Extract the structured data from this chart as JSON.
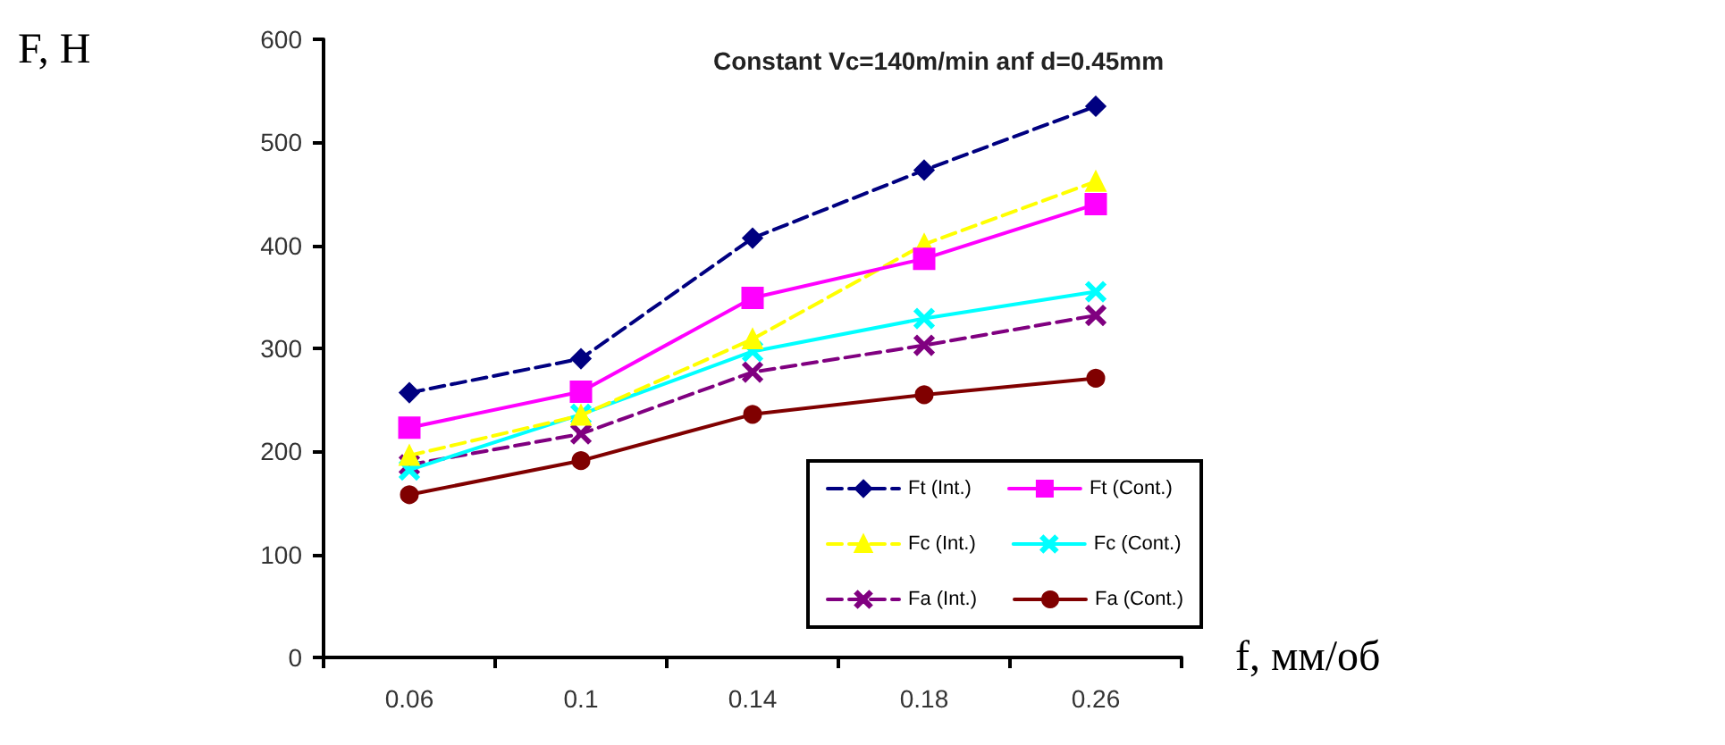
{
  "chart_data": {
    "type": "line",
    "title": "Constant Vc=140m/min anf d=0.45mm",
    "xlabel": "f, мм/об",
    "ylabel": "F, H",
    "categories": [
      "0.06",
      "0.1",
      "0.14",
      "0.18",
      "0.26"
    ],
    "ylim": [
      0,
      600
    ],
    "yticks": [
      0,
      100,
      200,
      300,
      400,
      500,
      600
    ],
    "grid": false,
    "legend": "bottom right",
    "series": [
      {
        "name": "Ft (Int.)",
        "color": "#000080",
        "marker": "diamond",
        "line_style": "dashed",
        "values": [
          257,
          290,
          407,
          473,
          535
        ]
      },
      {
        "name": "Ft (Cont.)",
        "color": "#ff00ff",
        "marker": "square",
        "line_style": "solid",
        "values": [
          223,
          258,
          349,
          387,
          440
        ]
      },
      {
        "name": "Fc (Int.)",
        "color": "#ffff00",
        "marker": "triangle",
        "line_style": "dashed",
        "values": [
          196,
          235,
          309,
          401,
          462
        ]
      },
      {
        "name": "Fc (Cont.)",
        "color": "#00ffff",
        "marker": "cross",
        "line_style": "solid",
        "values": [
          182,
          236,
          297,
          329,
          355
        ]
      },
      {
        "name": "Fa (Int.)",
        "color": "#800080",
        "marker": "cross",
        "line_style": "dashed",
        "values": [
          187,
          217,
          277,
          303,
          332
        ]
      },
      {
        "name": "Fa (Cont.)",
        "color": "#800000",
        "marker": "circle",
        "line_style": "solid",
        "values": [
          158,
          191,
          236,
          255,
          271
        ]
      }
    ]
  }
}
